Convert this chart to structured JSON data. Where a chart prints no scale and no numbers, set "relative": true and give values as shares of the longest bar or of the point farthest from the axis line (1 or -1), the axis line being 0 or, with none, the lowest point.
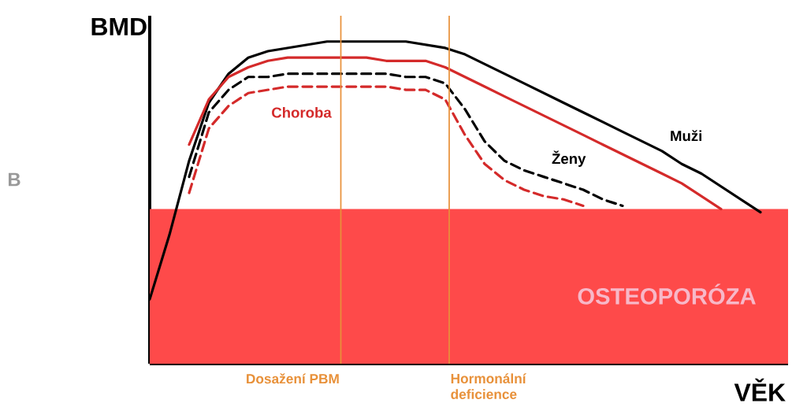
{
  "chart_data": {
    "type": "line",
    "relative": true,
    "marker": "none",
    "xlabel": "VĚK",
    "ylabel": "BMD",
    "categories": [
      null,
      null,
      null,
      null,
      null,
      null,
      null,
      null,
      null,
      null,
      null,
      null,
      null,
      null,
      null,
      null,
      null,
      null,
      null,
      null,
      null,
      null,
      null,
      null,
      null,
      null,
      null,
      null,
      null,
      null,
      null,
      null,
      null
    ],
    "series": [
      {
        "name": "Muži",
        "color": "#000000",
        "line_style": "solid",
        "values": [
          0.2,
          0.4,
          0.63,
          0.81,
          0.9,
          0.95,
          0.97,
          0.98,
          0.99,
          1.0,
          1.0,
          1.0,
          1.0,
          1.0,
          0.99,
          0.98,
          0.96,
          0.93,
          0.9,
          0.87,
          0.84,
          0.81,
          0.78,
          0.75,
          0.72,
          0.69,
          0.66,
          0.62,
          0.59,
          0.55,
          0.51,
          0.47,
          null
        ]
      },
      {
        "color": "#d42a2a",
        "line_style": "solid",
        "values": [
          null,
          null,
          0.68,
          0.82,
          0.89,
          0.92,
          0.94,
          0.95,
          0.95,
          0.95,
          0.95,
          0.95,
          0.94,
          0.94,
          0.94,
          0.92,
          0.89,
          0.86,
          0.83,
          0.8,
          0.77,
          0.74,
          0.71,
          0.68,
          0.65,
          0.62,
          0.59,
          0.56,
          0.52,
          0.48,
          null,
          null,
          null
        ]
      },
      {
        "name": "Ženy",
        "color": "#000000",
        "line_style": "dashed",
        "values": [
          null,
          null,
          0.58,
          0.78,
          0.85,
          0.89,
          0.89,
          0.9,
          0.9,
          0.9,
          0.9,
          0.9,
          0.9,
          0.89,
          0.89,
          0.87,
          0.79,
          0.69,
          0.63,
          0.6,
          0.58,
          0.56,
          0.54,
          0.51,
          0.49,
          null,
          null,
          null,
          null,
          null,
          null,
          null,
          null
        ]
      },
      {
        "color": "#d42a2a",
        "line_style": "dashed",
        "values": [
          null,
          null,
          0.53,
          0.73,
          0.8,
          0.84,
          0.85,
          0.86,
          0.86,
          0.86,
          0.86,
          0.86,
          0.86,
          0.85,
          0.85,
          0.82,
          0.71,
          0.62,
          0.57,
          0.54,
          0.52,
          0.51,
          0.49,
          null,
          null,
          null,
          null,
          null,
          null,
          null,
          null,
          null,
          null
        ]
      }
    ],
    "bands": [
      {
        "axis": "y",
        "from": 0,
        "to": 0.48,
        "label": "OSTEOPORÓZA",
        "color": "#fe4a4a"
      }
    ],
    "annotations": [
      "Choroba",
      "B",
      "Dosažení PBM",
      "Hormonální deficience"
    ]
  }
}
